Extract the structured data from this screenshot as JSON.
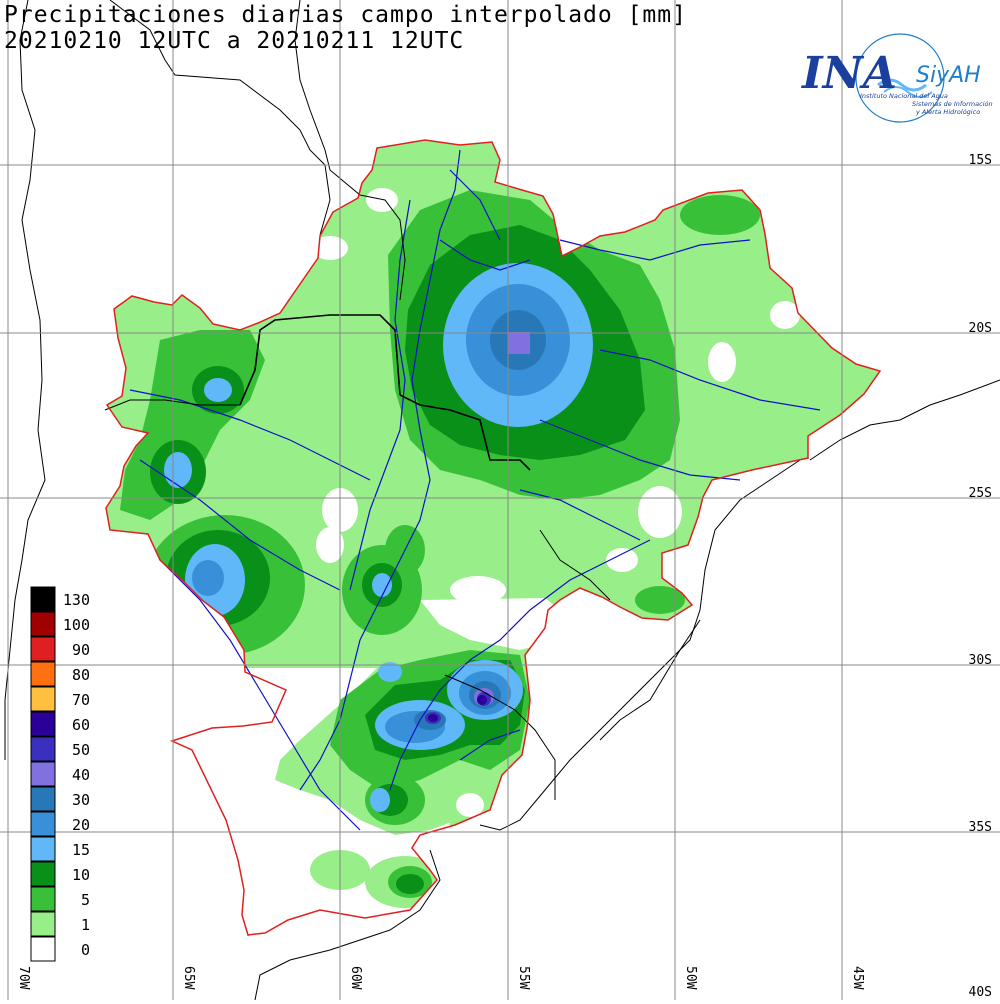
{
  "title": {
    "line1": "Precipitaciones diarias campo interpolado [mm]",
    "line2": "20210210 12UTC a 20210211 12UTC"
  },
  "logo": {
    "main": "INA",
    "brand": "SiyAH",
    "org": "Instituto Nacional del Agua",
    "tag1": "Sistemas de Información",
    "tag2": "y Alerta Hidrológico"
  },
  "grid": {
    "lat_labels": [
      "15S",
      "20S",
      "25S",
      "30S",
      "35S",
      "40S"
    ],
    "lon_labels": [
      "70W",
      "65W",
      "60W",
      "55W",
      "50W",
      "45W"
    ]
  },
  "legend": {
    "items": [
      {
        "label": "130",
        "color": "#000000"
      },
      {
        "label": "100",
        "color": "#a00000"
      },
      {
        "label": "90",
        "color": "#e02020"
      },
      {
        "label": "80",
        "color": "#ff7010"
      },
      {
        "label": "70",
        "color": "#ffc040"
      },
      {
        "label": "60",
        "color": "#2a0098"
      },
      {
        "label": "50",
        "color": "#3a30c0"
      },
      {
        "label": "40",
        "color": "#8070e0"
      },
      {
        "label": "30",
        "color": "#2878b8"
      },
      {
        "label": "20",
        "color": "#3890d8"
      },
      {
        "label": "15",
        "color": "#60b8f8"
      },
      {
        "label": "10",
        "color": "#089018"
      },
      {
        "label": "5",
        "color": "#38c038"
      },
      {
        "label": "1",
        "color": "#98ee88"
      },
      {
        "label": "0",
        "color": "#ffffff"
      }
    ]
  },
  "colors": {
    "basin_outline": "#e02020",
    "rivers": "#1010c8",
    "borders": "#000000",
    "grid": "#888888"
  }
}
